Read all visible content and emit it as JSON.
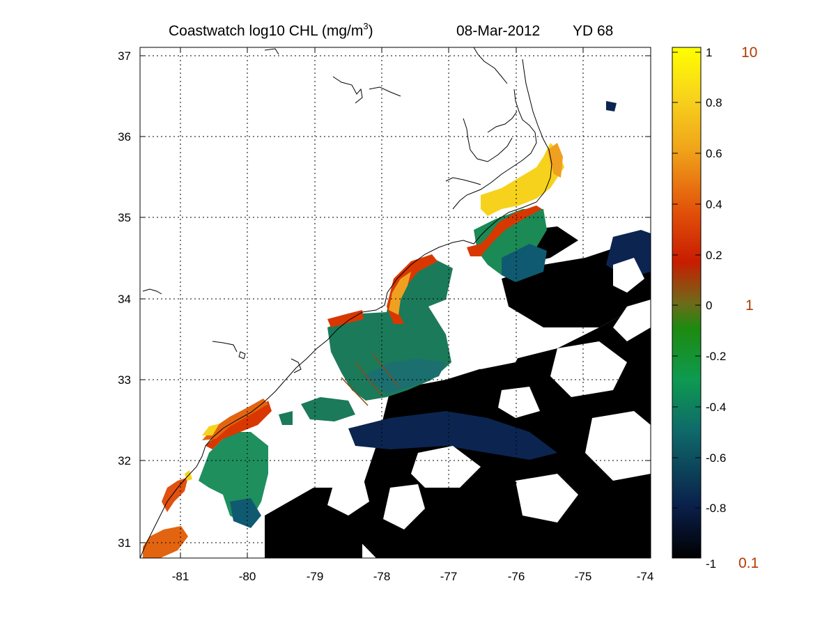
{
  "title": {
    "product": "Coastwatch  log10  CHL (mg/m",
    "superscript": "3",
    "close_paren": ")",
    "date": "08-Mar-2012",
    "yearday": "YD 68"
  },
  "map": {
    "lon_range": [
      -81.6,
      -74.0
    ],
    "lat_range": [
      30.8,
      37.2
    ],
    "lon_ticks": [
      "-81",
      "-80",
      "-79",
      "-78",
      "-77",
      "-76",
      "-75",
      "-74"
    ],
    "lat_ticks": [
      "31",
      "32",
      "33",
      "34",
      "35",
      "36",
      "37"
    ],
    "grid": "dotted",
    "coastline_color": "#000000"
  },
  "colorbar": {
    "range": [
      -1,
      1
    ],
    "ticks": [
      "1",
      "0.8",
      "0.6",
      "0.4",
      "0.2",
      "0",
      "-0.2",
      "-0.4",
      "-0.6",
      "-0.8",
      "-1"
    ],
    "value_labels": [
      "10",
      "1",
      "0.1"
    ],
    "value_label_color": "#b23a00",
    "colormap": [
      "#000000",
      "#0a1f4a",
      "#0f6a6a",
      "#0e9a50",
      "#1d8a10",
      "#6f6a1a",
      "#c81c00",
      "#e2520a",
      "#f0a41a",
      "#f7d21c",
      "#ffff00"
    ]
  }
}
